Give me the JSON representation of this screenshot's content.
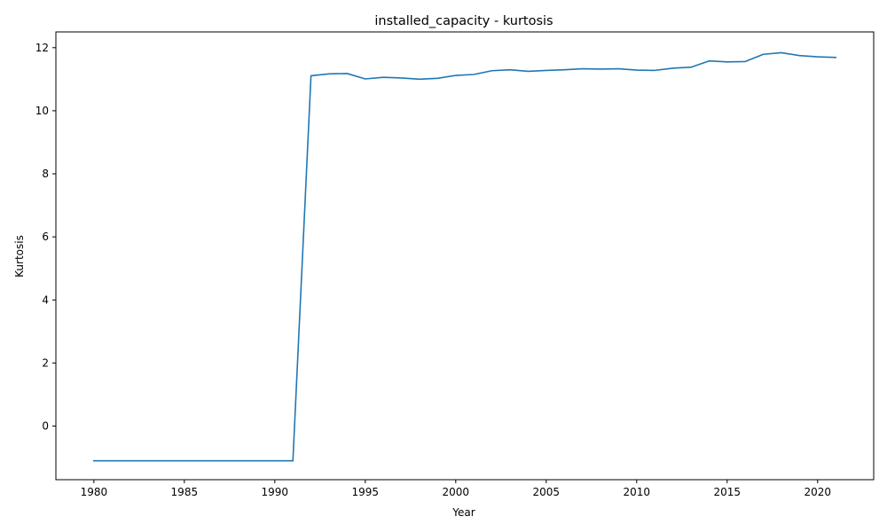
{
  "chart_data": {
    "type": "line",
    "title": "installed_capacity - kurtosis",
    "xlabel": "Year",
    "ylabel": "Kurtosis",
    "xlim": [
      1977.9,
      2023.1
    ],
    "ylim": [
      -1.7,
      12.5
    ],
    "xticks": [
      1980,
      1985,
      1990,
      1995,
      2000,
      2005,
      2010,
      2015,
      2020
    ],
    "yticks": [
      0,
      2,
      4,
      6,
      8,
      10,
      12
    ],
    "grid": false,
    "legend": "none",
    "colors": {
      "line": "#1f77b4",
      "axis": "#000000",
      "background": "#ffffff"
    },
    "series": [
      {
        "x": [
          1980,
          1981,
          1982,
          1983,
          1984,
          1985,
          1986,
          1987,
          1988,
          1989,
          1990,
          1991,
          1992,
          1993,
          1994,
          1995,
          1996,
          1997,
          1998,
          1999,
          2000,
          2001,
          2002,
          2003,
          2004,
          2005,
          2006,
          2007,
          2008,
          2009,
          2010,
          2011,
          2012,
          2013,
          2014,
          2015,
          2016,
          2017,
          2018,
          2019,
          2020,
          2021
        ],
        "values": [
          -1.1,
          -1.1,
          -1.1,
          -1.1,
          -1.1,
          -1.1,
          -1.1,
          -1.1,
          -1.1,
          -1.1,
          -1.1,
          -1.1,
          11.11,
          11.17,
          11.18,
          11.01,
          11.06,
          11.04,
          11.0,
          11.03,
          11.12,
          11.15,
          11.27,
          11.3,
          11.25,
          11.28,
          11.3,
          11.33,
          11.32,
          11.33,
          11.29,
          11.28,
          11.35,
          11.38,
          11.58,
          11.55,
          11.56,
          11.79,
          11.84,
          11.75,
          11.71,
          11.69
        ]
      }
    ]
  }
}
